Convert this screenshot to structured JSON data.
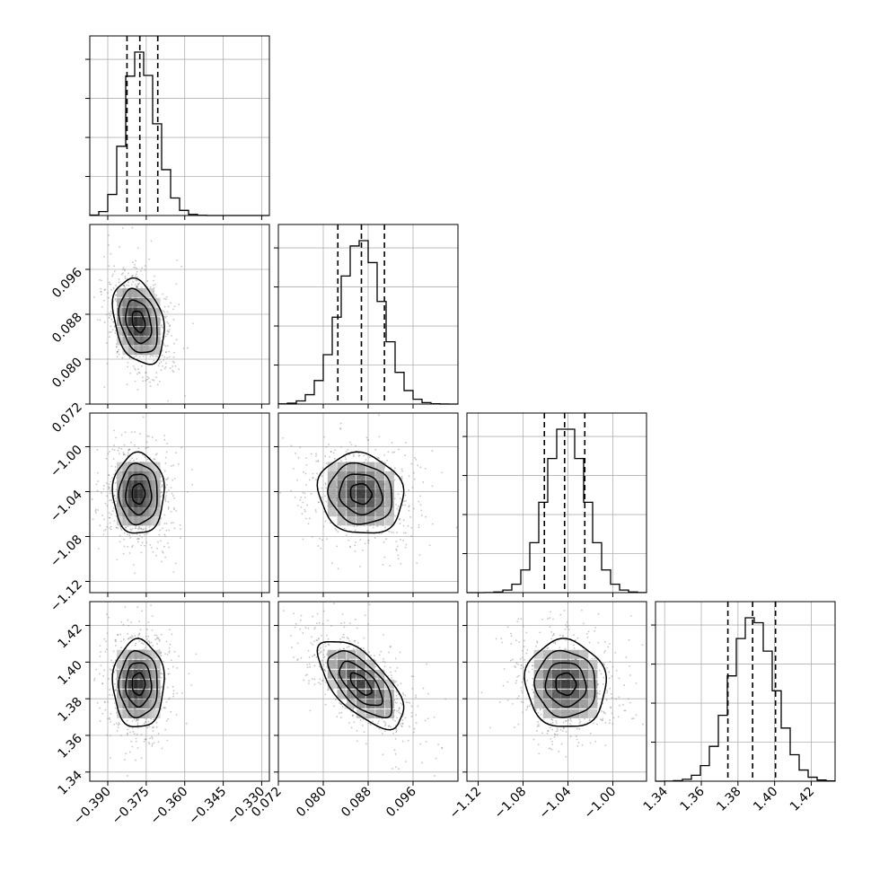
{
  "chart_data": {
    "type": "scatter",
    "subtype": "corner-plot",
    "title": "",
    "grid": true,
    "colors": {
      "line": "#000000",
      "grid": "#b0b0b0",
      "points": "#7f7f7f",
      "background": "#ffffff"
    },
    "parameters": [
      {
        "name": "",
        "xlim": [
          -0.397,
          -0.327
        ],
        "ticks": [
          -0.39,
          -0.375,
          -0.36,
          -0.345,
          -0.33
        ],
        "tick_labels": [
          "−0.390",
          "−0.375",
          "−0.360",
          "−0.345",
          "−0.330"
        ],
        "mean": -0.378,
        "sd": 0.005,
        "quantiles": [
          -0.3825,
          -0.3775,
          -0.3705
        ]
      },
      {
        "name": "",
        "xlim": [
          0.072,
          0.104
        ],
        "ticks": [
          0.072,
          0.08,
          0.088,
          0.096
        ],
        "tick_labels": [
          "0.072",
          "0.080",
          "0.088",
          "0.096"
        ],
        "mean": 0.0867,
        "sd": 0.0038,
        "quantiles": [
          0.0826,
          0.0868,
          0.0909
        ]
      },
      {
        "name": "",
        "xlim": [
          -1.13,
          -0.97
        ],
        "ticks": [
          -1.12,
          -1.08,
          -1.04,
          -1.0
        ],
        "tick_labels": [
          "−1.12",
          "−1.08",
          "−1.04",
          "−1.00"
        ],
        "mean": -1.042,
        "sd": 0.018,
        "quantiles": [
          -1.061,
          -1.043,
          -1.025
        ]
      },
      {
        "name": "",
        "xlim": [
          1.335,
          1.433
        ],
        "ticks": [
          1.34,
          1.36,
          1.38,
          1.4,
          1.42
        ],
        "tick_labels": [
          "1.34",
          "1.36",
          "1.38",
          "1.40",
          "1.42"
        ],
        "mean": 1.388,
        "sd": 0.012,
        "quantiles": [
          1.3745,
          1.388,
          1.4005
        ]
      }
    ],
    "correlations": [
      {
        "pair": [
          0,
          1
        ],
        "r": -0.3
      },
      {
        "pair": [
          0,
          2
        ],
        "r": 0.0
      },
      {
        "pair": [
          0,
          3
        ],
        "r": 0.0
      },
      {
        "pair": [
          1,
          2
        ],
        "r": -0.1
      },
      {
        "pair": [
          1,
          3
        ],
        "r": -0.65
      },
      {
        "pair": [
          2,
          3
        ],
        "r": -0.05
      }
    ],
    "contour_levels_sigma": [
      0.5,
      1.0,
      1.5,
      2.0
    ]
  }
}
